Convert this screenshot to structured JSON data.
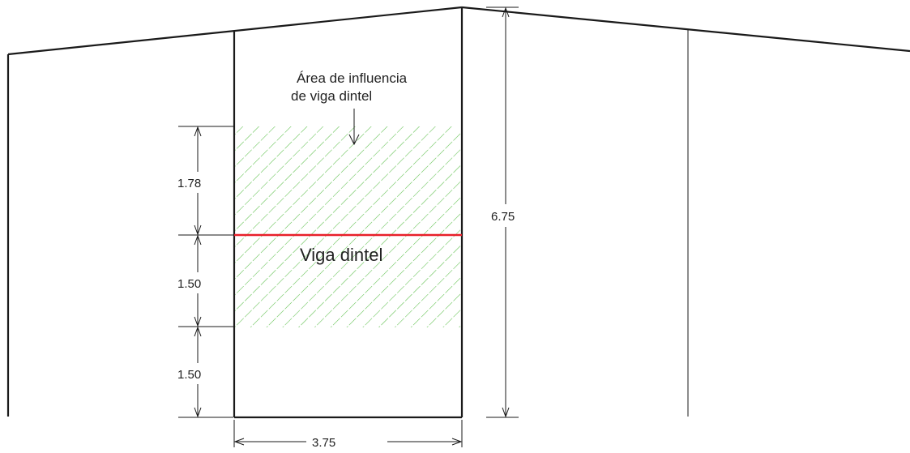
{
  "colors": {
    "lines": "#1a1a1a",
    "beam": "#e8202a",
    "hatch": "#5cbf4a"
  },
  "annotation": {
    "line1": "Área de influencia",
    "line2": "de viga dintel"
  },
  "beam_label": "Viga dintel",
  "dimensions": {
    "upper_tributary": "1.78",
    "lower_tributary": "1.50",
    "base_to_lower": "1.50",
    "total_height": "6.75",
    "bay_width": "3.75"
  }
}
